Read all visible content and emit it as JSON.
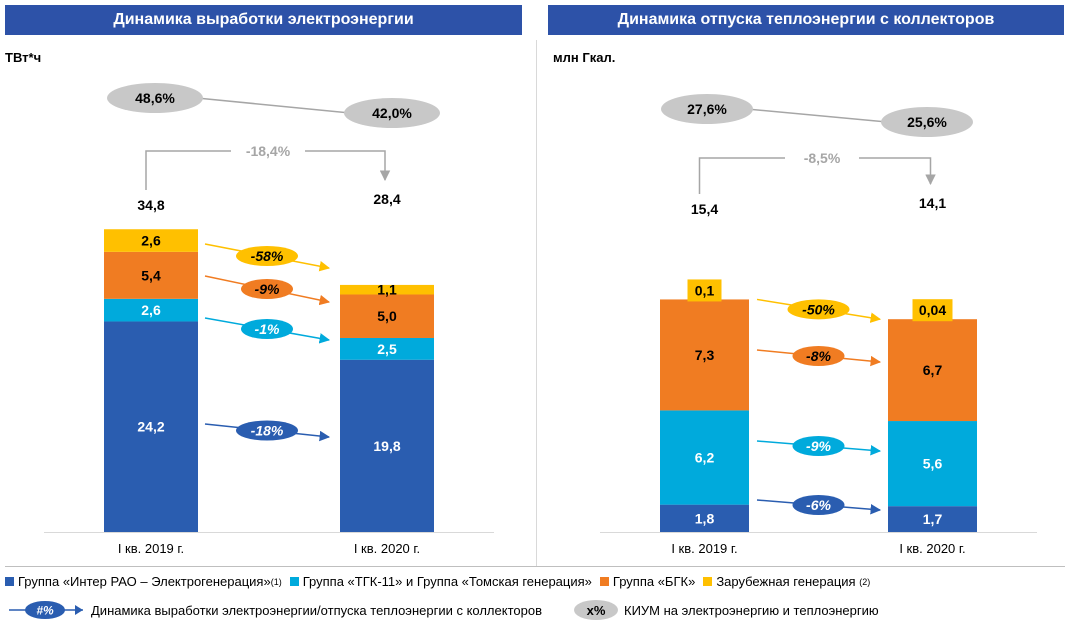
{
  "headers": {
    "left": "Динамика выработки электроэнергии",
    "right": "Динамика отпуска теплоэнергии с коллекторов"
  },
  "colors": {
    "inter_rao": "#2a5db0",
    "tgk": "#00aadc",
    "bgk": "#f07c22",
    "foreign": "#ffc000",
    "header": "#2d52a8",
    "kium": "#c8c8c8"
  },
  "chart_data": [
    {
      "type": "bar",
      "stacked": true,
      "title": "Динамика выработки электроэнергии",
      "unit": "ТВт*ч",
      "categories": [
        "I кв. 2019 г.",
        "I кв. 2020 г."
      ],
      "series": [
        {
          "name": "Группа «Интер РАО – Электрогенерация»",
          "values": [
            24.2,
            19.8
          ],
          "labels": [
            "24,2",
            "19,8"
          ],
          "change": "-18%"
        },
        {
          "name": "Группа «ТГК-11» и Группа «Томская генерация»",
          "values": [
            2.6,
            2.5
          ],
          "labels": [
            "2,6",
            "2,5"
          ],
          "change": "-1%"
        },
        {
          "name": "Группа «БГК»",
          "values": [
            5.4,
            5.0
          ],
          "labels": [
            "5,4",
            "5,0"
          ],
          "change": "-9%"
        },
        {
          "name": "Зарубежная генерация",
          "values": [
            2.6,
            1.1
          ],
          "labels": [
            "2,6",
            "1,1"
          ],
          "change": "-58%"
        }
      ],
      "totals": [
        "34,8",
        "28,4"
      ],
      "total_change": "-18,4%",
      "kium": [
        "48,6%",
        "42,0%"
      ]
    },
    {
      "type": "bar",
      "stacked": true,
      "title": "Динамика отпуска теплоэнергии с коллекторов",
      "unit": "млн Гкал.",
      "categories": [
        "I кв. 2019 г.",
        "I кв. 2020 г."
      ],
      "series": [
        {
          "name": "Группа «Интер РАО – Электрогенерация»",
          "values": [
            1.8,
            1.7
          ],
          "labels": [
            "1,8",
            "1,7"
          ],
          "change": "-6%"
        },
        {
          "name": "Группа «ТГК-11» и Группа «Томская генерация»",
          "values": [
            6.2,
            5.6
          ],
          "labels": [
            "6,2",
            "5,6"
          ],
          "change": "-9%"
        },
        {
          "name": "Группа «БГК»",
          "values": [
            7.3,
            6.7
          ],
          "labels": [
            "7,3",
            "6,7"
          ],
          "change": "-8%"
        },
        {
          "name": "Зарубежная генерация",
          "values": [
            0.1,
            0.04
          ],
          "labels": [
            "0,1",
            "0,04"
          ],
          "change": "-50%"
        }
      ],
      "totals": [
        "15,4",
        "14,1"
      ],
      "total_change": "-8,5%",
      "kium": [
        "27,6%",
        "25,6%"
      ]
    }
  ],
  "legend": {
    "inter_rao": "Группа «Интер РАО – Электрогенерация»",
    "inter_rao_note": "(1)",
    "tgk": "Группа «ТГК-11» и Группа «Томская генерация»",
    "bgk": "Группа «БГК»",
    "foreign": "Зарубежная генерация",
    "foreign_note": "(2)",
    "dynamics_key": "#%",
    "dynamics_label": "Динамика выработки электроэнергии/отпуска теплоэнергии с коллекторов",
    "kium_key": "x%",
    "kium_label": "КИУМ на электроэнергию и теплоэнергию"
  }
}
